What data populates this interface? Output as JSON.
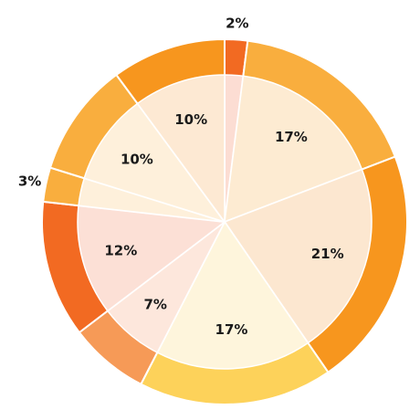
{
  "chart_data": {
    "type": "pie",
    "title": "",
    "categories": [
      "",
      "",
      "",
      "",
      "",
      "",
      "",
      "",
      ""
    ],
    "values": [
      2,
      17,
      21,
      17,
      7,
      12,
      3,
      10,
      10
    ],
    "labels": [
      "2%",
      "17%",
      "21%",
      "17%",
      "7%",
      "12%",
      "3%",
      "10%",
      "10%"
    ],
    "start_angle_deg": 0,
    "direction": "clockwise",
    "ring_colors": [
      "#F26A22",
      "#F9AE3E",
      "#F7961E",
      "#FDD25A",
      "#F69A57",
      "#F26A22",
      "#F9AE3E",
      "#F9AE3E",
      "#F7961E"
    ],
    "fill_colors": [
      "#FCDDD3",
      "#FDEBD2",
      "#FCE7D0",
      "#FEF5DC",
      "#FDE7DC",
      "#FCE0D6",
      "#FEF0DB",
      "#FEF0DB",
      "#FDE9D3"
    ],
    "outside_label_slices": [
      0,
      6
    ]
  }
}
